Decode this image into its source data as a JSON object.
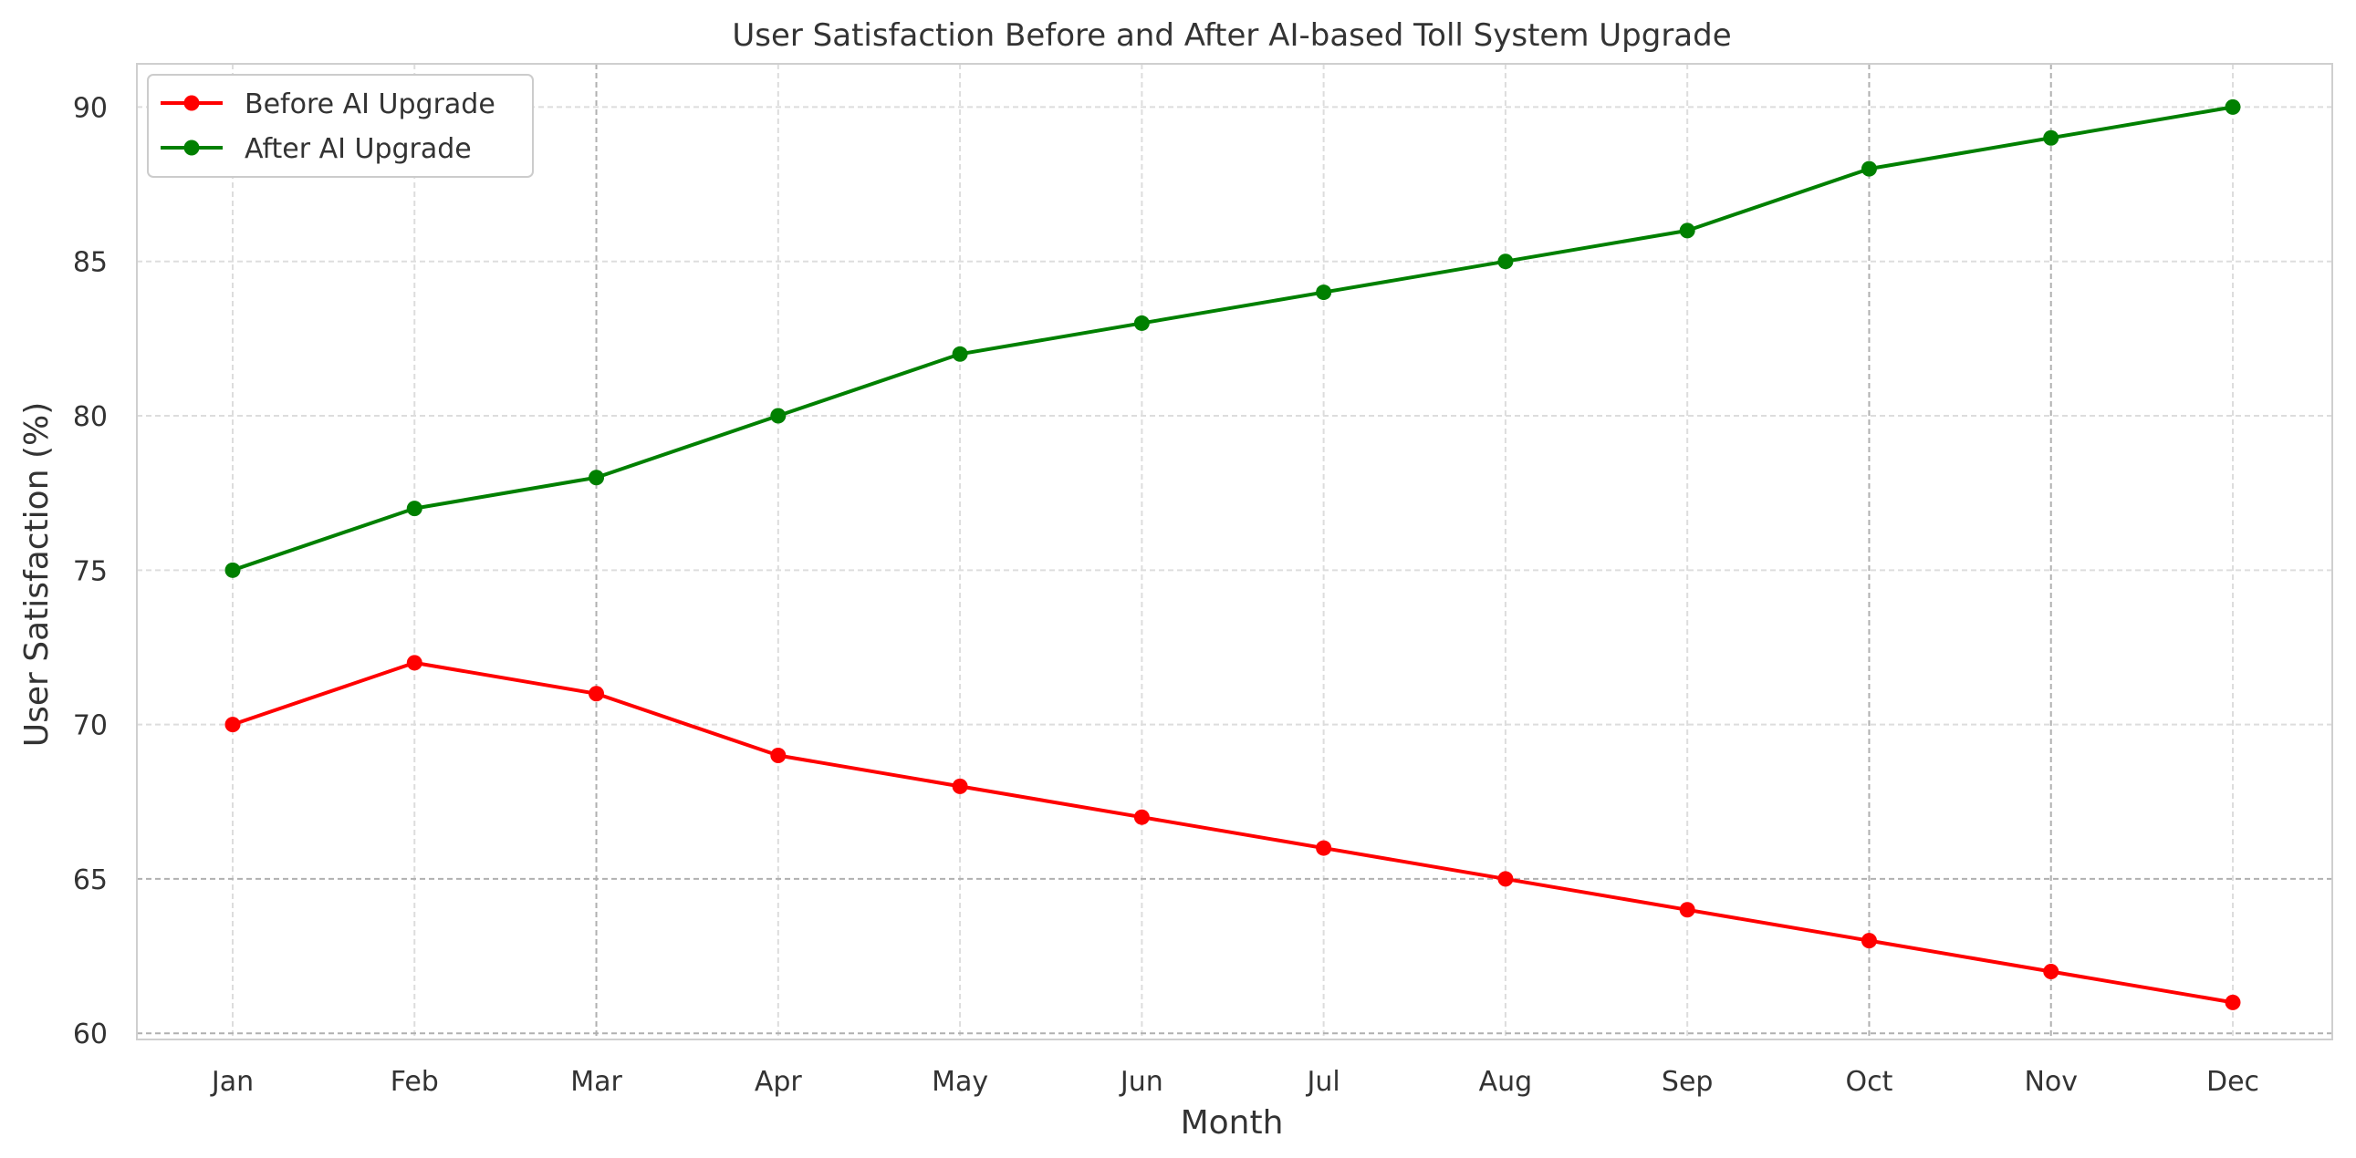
{
  "chart_data": {
    "type": "line",
    "title": "User Satisfaction Before and After AI-based Toll System Upgrade",
    "xlabel": "Month",
    "ylabel": "User Satisfaction (%)",
    "categories": [
      "Jan",
      "Feb",
      "Mar",
      "Apr",
      "May",
      "Jun",
      "Jul",
      "Aug",
      "Sep",
      "Oct",
      "Nov",
      "Dec"
    ],
    "ylim": [
      59.8,
      91.4
    ],
    "yticks": [
      60,
      65,
      70,
      75,
      80,
      85,
      90
    ],
    "grid": true,
    "legend_position": "top-left",
    "series": [
      {
        "name": "Before AI Upgrade",
        "color": "#ff0000",
        "marker": "circle",
        "values": [
          70,
          72,
          71,
          69,
          68,
          67,
          66,
          65,
          64,
          63,
          62,
          61
        ]
      },
      {
        "name": "After AI Upgrade",
        "color": "#008000",
        "marker": "circle",
        "values": [
          75,
          77,
          78,
          80,
          82,
          83,
          84,
          85,
          86,
          88,
          89,
          90
        ]
      }
    ]
  }
}
